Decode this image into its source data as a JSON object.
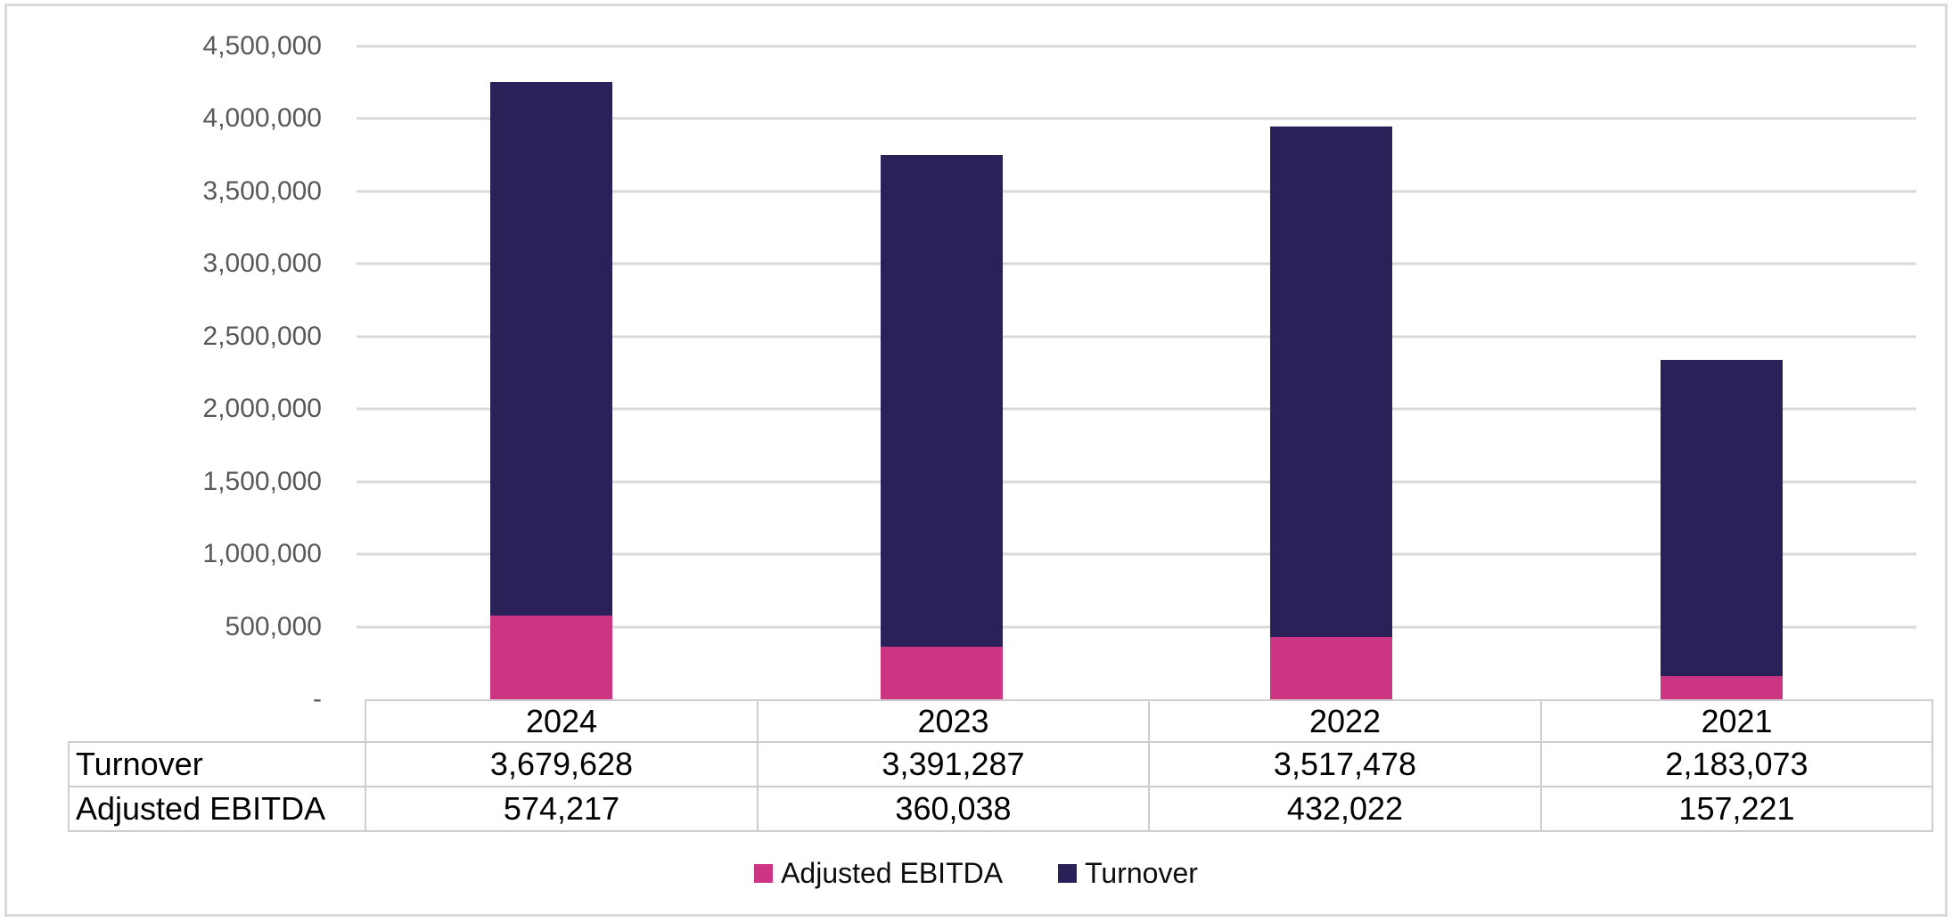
{
  "chart_data": {
    "type": "bar",
    "stacked": true,
    "orientation": "vertical",
    "categories": [
      "2024",
      "2023",
      "2022",
      "2021"
    ],
    "series": [
      {
        "name": "Adjusted EBITDA",
        "color": "#CB3582",
        "values": [
          574217,
          360038,
          432022,
          157221
        ]
      },
      {
        "name": "Turnover",
        "color": "#292157",
        "values": [
          3679628,
          3391287,
          3517478,
          2183073
        ]
      }
    ],
    "title": "",
    "xlabel": "",
    "ylabel": "",
    "y_axis": {
      "min": 0,
      "max": 4500000,
      "step": 500000,
      "tick_labels": [
        "4,500,000",
        "4,000,000",
        "3,500,000",
        "3,000,000",
        "2,500,000",
        "2,000,000",
        "1,500,000",
        "1,000,000",
        "500,000",
        "-"
      ]
    },
    "gridlines": true,
    "legend_position": "bottom",
    "legend": [
      "Adjusted EBITDA",
      "Turnover"
    ]
  },
  "data_table": {
    "column_headers": [
      "2024",
      "2023",
      "2022",
      "2021"
    ],
    "rows": [
      {
        "label": "Turnover",
        "values": [
          "3,679,628",
          "3,391,287",
          "3,517,478",
          "2,183,073"
        ]
      },
      {
        "label": "Adjusted EBITDA",
        "values": [
          "574,217",
          "360,038",
          "432,022",
          "157,221"
        ]
      }
    ]
  },
  "colors": {
    "ebitda": "#CB3582",
    "turnover": "#292157",
    "gridline": "#D9D9D9",
    "axis_label": "#595959",
    "table_border": "#CFCDCD",
    "frame_border": "#D9D9D9",
    "text": "#000000"
  }
}
